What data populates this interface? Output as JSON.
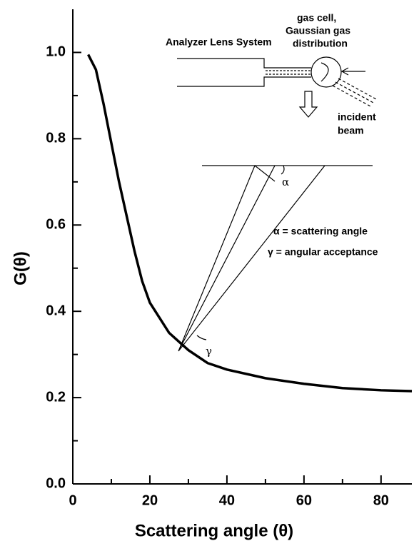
{
  "chart_data": {
    "type": "line",
    "x_label": "Scattering angle (θ)",
    "y_label": "G(θ)",
    "series": [
      {
        "color": "#000000",
        "x": [
          4,
          6,
          8,
          10,
          12,
          14,
          16,
          18,
          20,
          25,
          30,
          35,
          40,
          50,
          60,
          70,
          80,
          88
        ],
        "values": [
          0.995,
          0.96,
          0.88,
          0.79,
          0.7,
          0.62,
          0.54,
          0.47,
          0.42,
          0.35,
          0.31,
          0.28,
          0.265,
          0.245,
          0.232,
          0.222,
          0.217,
          0.215
        ]
      }
    ],
    "xlim": [
      0,
      88
    ],
    "ylim": [
      0,
      1.1
    ],
    "xticks": [
      0,
      20,
      40,
      60,
      80
    ],
    "xminor": [
      10,
      30,
      50,
      70
    ],
    "yticks": [
      {
        "value": 0,
        "label": "0.0"
      },
      0.2,
      0.4,
      0.6,
      0.8,
      {
        "value": 1,
        "label": "1.0"
      }
    ],
    "yminor": [
      0.1,
      0.3,
      0.5,
      0.7,
      0.9
    ],
    "annotations": [
      "Analyzer Lens System",
      "gas cell,",
      "Gaussian gas",
      "distribution",
      "incident",
      "beam",
      "α",
      "γ",
      "α = scattering angle",
      "γ = angular acceptance"
    ]
  }
}
